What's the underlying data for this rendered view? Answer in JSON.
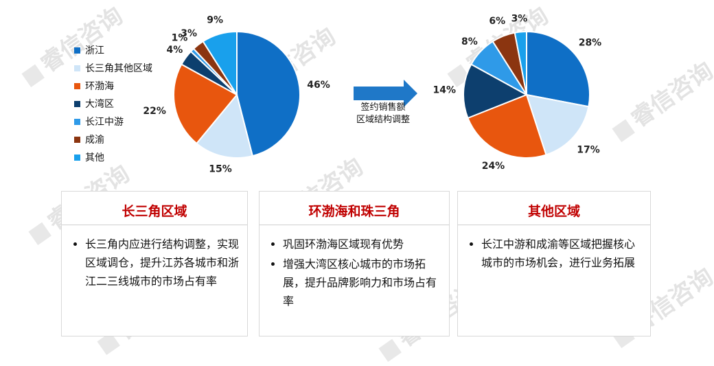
{
  "watermark": {
    "text": "睿信咨询"
  },
  "arrow": {
    "line1": "签约销售额",
    "line2": "区域结构调整",
    "color": "#1f78c8"
  },
  "legend": [
    {
      "name": "浙江",
      "color": "#0f6fc6"
    },
    {
      "name": "长三角其他区域",
      "color": "#cfe5f8"
    },
    {
      "name": "环渤海",
      "color": "#e8560e"
    },
    {
      "name": "大湾区",
      "color": "#0d3f6e"
    },
    {
      "name": "长江中游",
      "color": "#2f9ae8"
    },
    {
      "name": "成渝",
      "color": "#8b3510"
    },
    {
      "name": "其他",
      "color": "#19a0ec"
    }
  ],
  "chart_data": [
    {
      "type": "pie",
      "categories": [
        "浙江",
        "长三角其他区域",
        "环渤海",
        "大湾区",
        "长江中游",
        "成渝",
        "其他"
      ],
      "values": [
        46,
        15,
        22,
        4,
        1,
        3,
        9
      ],
      "labels": [
        "46%",
        "15%",
        "22%",
        "4%",
        "1%",
        "3%",
        "9%"
      ],
      "legend": "left"
    },
    {
      "type": "pie",
      "categories": [
        "浙江",
        "长三角其他区域",
        "环渤海",
        "大湾区",
        "长江中游",
        "成渝",
        "其他"
      ],
      "values": [
        28,
        17,
        24,
        14,
        8,
        6,
        3
      ],
      "labels": [
        "28%",
        "17%",
        "24%",
        "14%",
        "8%",
        "6%",
        "3%"
      ]
    }
  ],
  "panels": [
    {
      "title": "长三角区域",
      "bullets": [
        "长三角内应进行结构调整，实现区域调仓，提升江苏各城市和浙江二三线城市的市场占有率"
      ]
    },
    {
      "title": "环渤海和珠三角",
      "bullets": [
        "巩固环渤海区域现有优势",
        "增强大湾区核心城市的市场拓展，提升品牌影响力和市场占有率"
      ]
    },
    {
      "title": "其他区域",
      "bullets": [
        "长江中游和成渝等区域把握核心城市的市场机会，进行业务拓展"
      ]
    }
  ]
}
